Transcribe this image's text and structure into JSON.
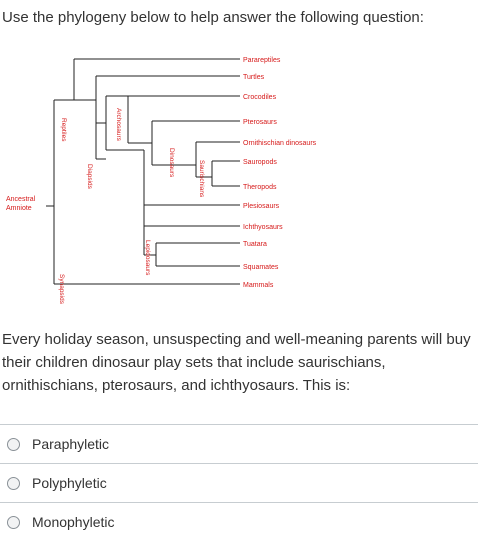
{
  "question": {
    "intro": "Use the phylogeny below to help answer the following question:",
    "text": "Every holiday season, unsuspecting and well-meaning parents will buy their children dinosaur play sets that include saurischians, ornithischians, pterosaurs, and ichthyosaurs. This is:"
  },
  "phylogeny": {
    "taxa": [
      "Parareptiles",
      "Turtles",
      "Crocodiles",
      "Pterosaurs",
      "Ornithischian dinosaurs",
      "Sauropods",
      "Theropods",
      "Plesiosaurs",
      "Ichthyosaurs",
      "Tuatara",
      "Squamates",
      "Mammals"
    ],
    "root_label_line1": "Ancestral",
    "root_label_line2": "Amniote",
    "clade_labels": {
      "reptiles": "Reptiles",
      "archosaurs": "Archosaurs",
      "diapsids": "Diapsids",
      "dinosaurs": "Dinosaurs",
      "saurischians": "Saurischians",
      "lepidosaurs": "Lepidosaurs",
      "synapsids": "Synapsids"
    },
    "colors": {
      "line": "#222222",
      "taxon_text": "#d61a1a",
      "clade_text": "#d61a1a",
      "root_text": "#d61a1a"
    }
  },
  "answers": [
    {
      "label": "Paraphyletic"
    },
    {
      "label": "Polyphyletic"
    },
    {
      "label": "Monophyletic"
    }
  ]
}
